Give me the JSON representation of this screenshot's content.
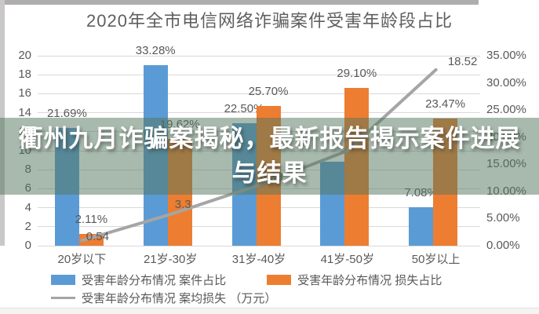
{
  "title": "2020年全市电信网络诈骗案件受害年龄段占比",
  "overlay": {
    "line1": "衢州九月诈骗案揭秘，最新报告揭示案件进展",
    "line2": "与结果",
    "band_color": "rgba(81,117,91,0.5)",
    "text_color": "#ffffff"
  },
  "chart_data": {
    "type": "bar",
    "subtype": "bar-line-combo",
    "title": "2020年全市电信网络诈骗案件受害年龄段占比",
    "categories": [
      "20岁以下",
      "21岁-30岁",
      "31岁-40岁",
      "41岁-50岁",
      "50岁以上"
    ],
    "series": [
      {
        "name": "受害年龄分布情况 案件占比",
        "type": "bar",
        "axis": "right",
        "color": "#5b9bd5",
        "values": [
          21.69,
          33.28,
          22.5,
          15.45,
          7.08
        ],
        "labels": [
          "21.69%",
          "33.28%",
          "22.50%",
          "",
          "7.08%"
        ]
      },
      {
        "name": "受害年龄分布情况 损失占比",
        "type": "bar",
        "axis": "right",
        "color": "#ed7d31",
        "values": [
          2.11,
          19.62,
          25.7,
          29.1,
          23.47
        ],
        "labels": [
          "2.11%",
          "19.62%",
          "25.70%",
          "29.10%",
          "23.47%"
        ]
      },
      {
        "name": "受害年龄分布情况 案均损失 （万元）",
        "type": "line",
        "axis": "left",
        "color": "#a5a5a5",
        "values": [
          0.54,
          3.3,
          6.38,
          10.0,
          18.52
        ],
        "labels": [
          "0.54",
          "3.3",
          "6.38",
          "",
          "18.52"
        ]
      }
    ],
    "left_axis": {
      "min": 0,
      "max": 20,
      "step": 2,
      "ticks": [
        "0",
        "2",
        "4",
        "6",
        "8",
        "10",
        "12",
        "14",
        "16",
        "18",
        "20"
      ]
    },
    "right_axis": {
      "min": 0,
      "max": 35,
      "step": 5,
      "ticks": [
        "0.00%",
        "5.00%",
        "10.00%",
        "15.00%",
        "20.00%",
        "25.00%",
        "30.00%",
        "35.00%"
      ]
    },
    "grid": true,
    "legend_position": "bottom"
  },
  "legend": {
    "items": [
      {
        "label": "受害年龄分布情况 案件占比",
        "swatch": "bar",
        "color": "#5b9bd5"
      },
      {
        "label": "受害年龄分布情况 损失占比",
        "swatch": "bar",
        "color": "#ed7d31"
      },
      {
        "label": "受害年龄分布情况 案均损失 （万元）",
        "swatch": "line",
        "color": "#a5a5a5"
      }
    ]
  },
  "colors": {
    "bar_blue": "#5b9bd5",
    "bar_orange": "#ed7d31",
    "line_gray": "#a5a5a5",
    "grid": "#d9d9d9",
    "axis_text": "#595959",
    "title_text": "#5f5f5f"
  }
}
